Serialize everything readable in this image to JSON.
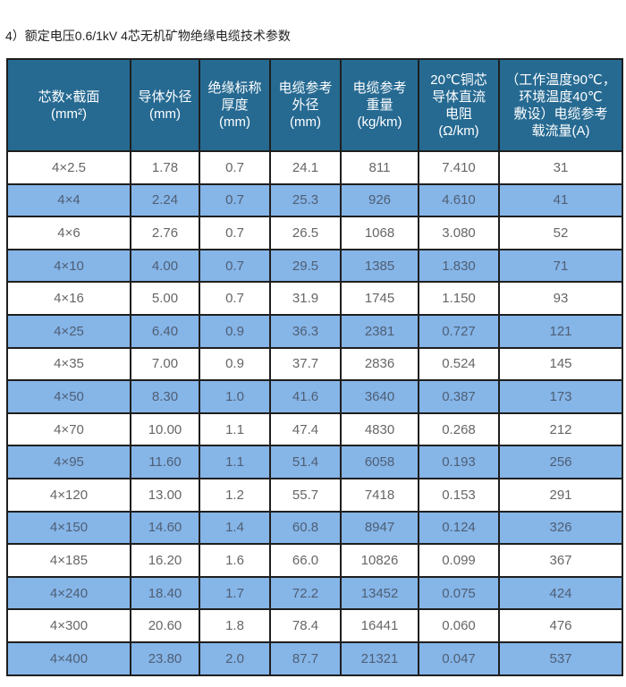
{
  "title": "4）额定电压0.6/1kV  4芯无机矿物绝缘电缆技术参数",
  "colors": {
    "header": "#266a92",
    "alt_row": "#86b5e8"
  },
  "headers": [
    "芯数×截面\n(mm²)",
    "导体外径\n(mm)",
    "绝缘标称\n厚度\n(mm)",
    "电缆参考\n外径\n(mm)",
    "电缆参考\n重量\n(kg/km)",
    "20℃铜芯\n导体直流\n电阻\n(Ω/km)",
    "（工作温度90℃，\n环境温度40℃\n敷设）电缆参考\n载流量(A)"
  ],
  "rows": [
    [
      "4×2.5",
      "1.78",
      "0.7",
      "24.1",
      "811",
      "7.410",
      "31"
    ],
    [
      "4×4",
      "2.24",
      "0.7",
      "25.3",
      "926",
      "4.610",
      "41"
    ],
    [
      "4×6",
      "2.76",
      "0.7",
      "26.5",
      "1068",
      "3.080",
      "52"
    ],
    [
      "4×10",
      "4.00",
      "0.7",
      "29.5",
      "1385",
      "1.830",
      "71"
    ],
    [
      "4×16",
      "5.00",
      "0.7",
      "31.9",
      "1745",
      "1.150",
      "93"
    ],
    [
      "4×25",
      "6.40",
      "0.9",
      "36.3",
      "2381",
      "0.727",
      "121"
    ],
    [
      "4×35",
      "7.00",
      "0.9",
      "37.7",
      "2836",
      "0.524",
      "145"
    ],
    [
      "4×50",
      "8.30",
      "1.0",
      "41.6",
      "3640",
      "0.387",
      "173"
    ],
    [
      "4×70",
      "10.00",
      "1.1",
      "47.4",
      "4830",
      "0.268",
      "212"
    ],
    [
      "4×95",
      "11.60",
      "1.1",
      "51.4",
      "6058",
      "0.193",
      "256"
    ],
    [
      "4×120",
      "13.00",
      "1.2",
      "55.7",
      "7418",
      "0.153",
      "291"
    ],
    [
      "4×150",
      "14.60",
      "1.4",
      "60.8",
      "8947",
      "0.124",
      "326"
    ],
    [
      "4×185",
      "16.20",
      "1.6",
      "66.0",
      "10826",
      "0.099",
      "367"
    ],
    [
      "4×240",
      "18.40",
      "1.7",
      "72.2",
      "13452",
      "0.075",
      "424"
    ],
    [
      "4×300",
      "20.60",
      "1.8",
      "78.4",
      "16441",
      "0.060",
      "476"
    ],
    [
      "4×400",
      "23.80",
      "2.0",
      "87.7",
      "21321",
      "0.047",
      "537"
    ]
  ]
}
